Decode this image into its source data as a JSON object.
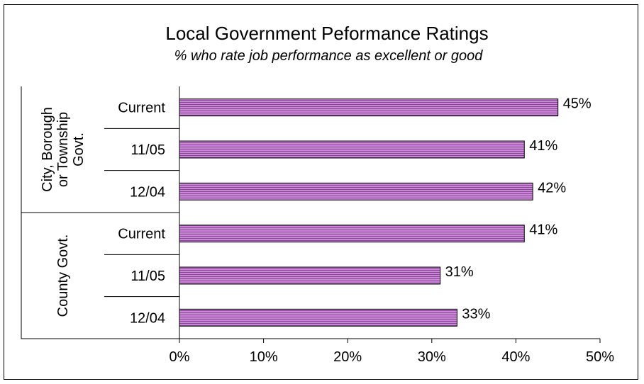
{
  "chart_data": {
    "type": "bar",
    "orientation": "horizontal",
    "title": "Local Government Peformance Ratings",
    "subtitle": "% who rate job performance as excellent or good",
    "xlim": [
      0,
      50
    ],
    "x_ticks": [
      "0%",
      "10%",
      "20%",
      "30%",
      "40%",
      "50%"
    ],
    "groups": [
      {
        "label_lines": [
          "City, Borough",
          "or Township",
          "Govt."
        ],
        "categories": [
          "Current",
          "11/05",
          "12/04"
        ],
        "values": [
          45,
          41,
          42
        ],
        "labels": [
          "45%",
          "41%",
          "42%"
        ]
      },
      {
        "label_lines": [
          "County Govt."
        ],
        "categories": [
          "Current",
          "11/05",
          "12/04"
        ],
        "values": [
          41,
          31,
          33
        ],
        "labels": [
          "41%",
          "31%",
          "33%"
        ]
      }
    ],
    "bar_color": "#b060c0",
    "grid": false,
    "legend": "none"
  }
}
